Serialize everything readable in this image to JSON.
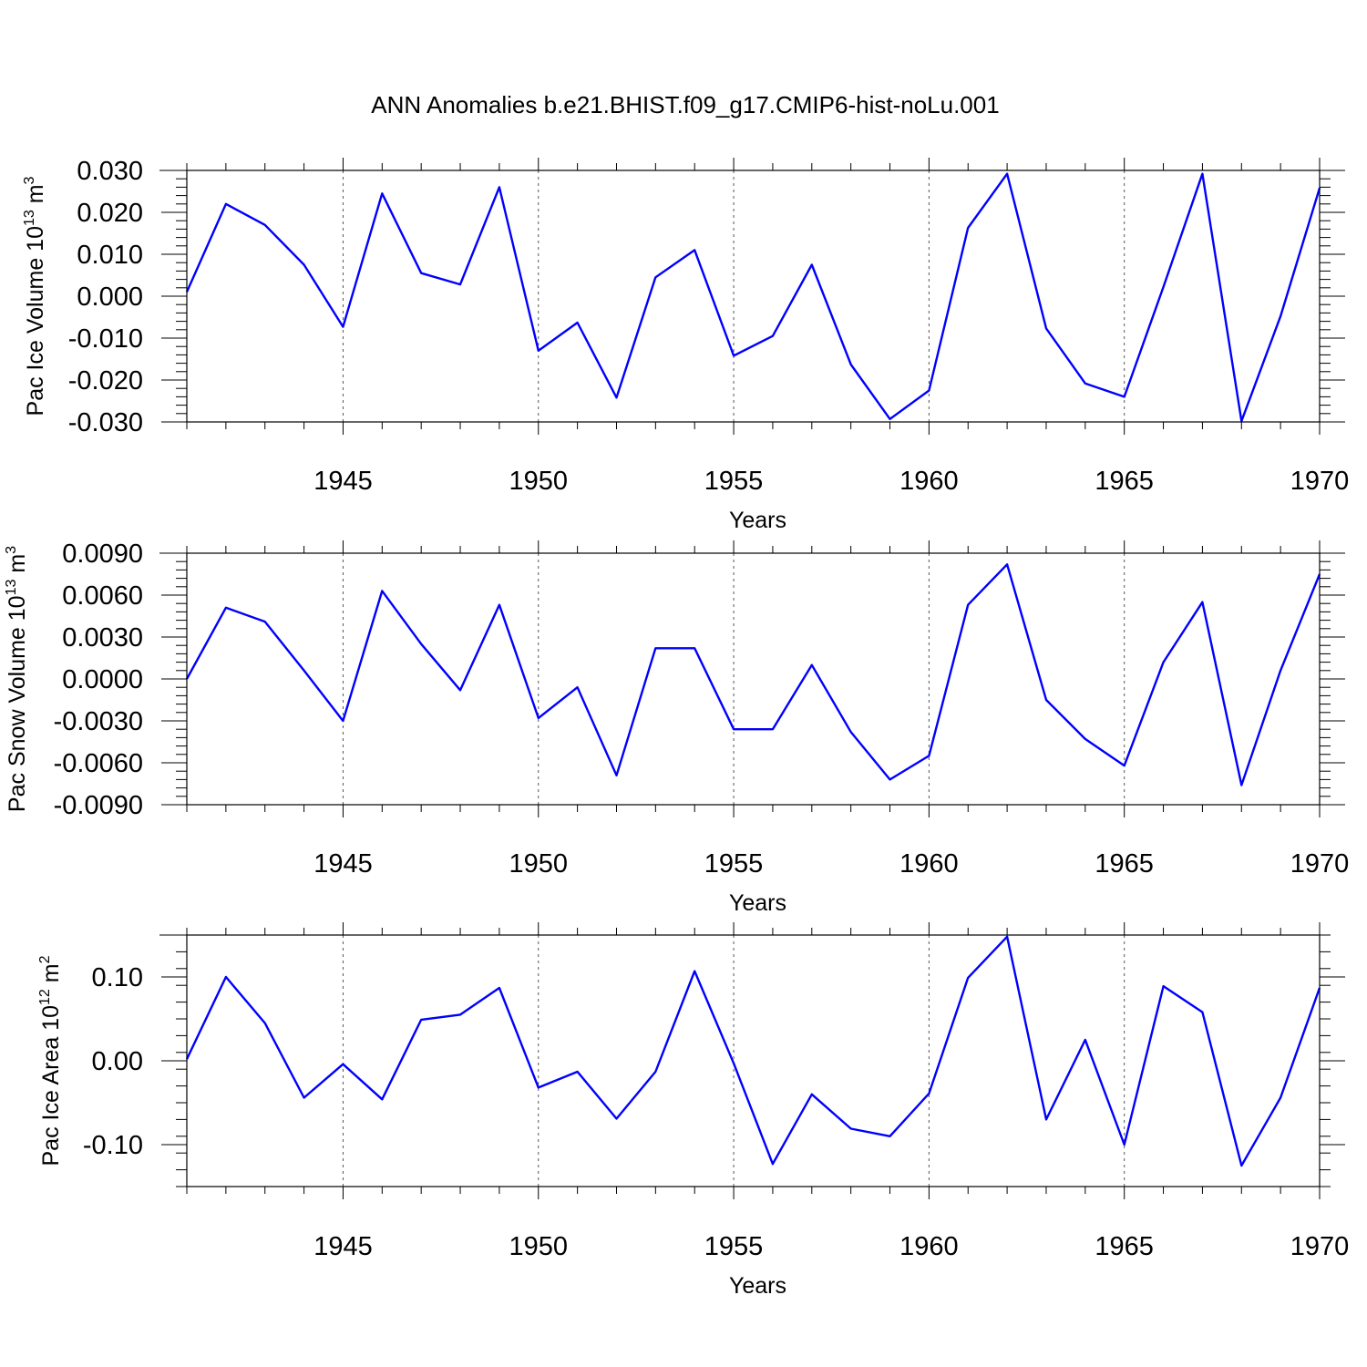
{
  "title": "ANN Anomalies b.e21.BHIST.f09_g17.CMIP6-hist-noLu.001",
  "colors": {
    "series": "#0000ff"
  },
  "chart_data": [
    {
      "type": "line",
      "ylabel_main": "Pac Ice Volume 10",
      "ylabel_exp": "13",
      "ylabel_unit": " m",
      "ylabel_unit_exp": "3",
      "xlabel": "Years",
      "xlim": [
        1941,
        1970
      ],
      "ylim": [
        -0.03,
        0.03
      ],
      "yticks": [
        -0.03,
        -0.02,
        -0.01,
        0.0,
        0.01,
        0.02,
        0.03
      ],
      "ytick_labels": [
        "-0.030",
        "-0.020",
        "-0.010",
        "0.000",
        "0.010",
        "0.020",
        "0.030"
      ],
      "yminor_step": 0.002,
      "xticks": [
        1945,
        1950,
        1955,
        1960,
        1965,
        1970
      ],
      "xtick_labels": [
        "1945",
        "1950",
        "1955",
        "1960",
        "1965",
        "1970"
      ],
      "x": [
        1941,
        1942,
        1943,
        1944,
        1945,
        1946,
        1947,
        1948,
        1949,
        1950,
        1951,
        1952,
        1953,
        1954,
        1955,
        1956,
        1957,
        1958,
        1959,
        1960,
        1961,
        1962,
        1963,
        1964,
        1965,
        1966,
        1967,
        1968,
        1969,
        1970
      ],
      "values": [
        0.001,
        0.022,
        0.017,
        0.0075,
        -0.0073,
        0.0245,
        0.0055,
        0.0028,
        0.026,
        -0.013,
        -0.0063,
        -0.0242,
        0.0045,
        0.011,
        -0.0142,
        -0.0095,
        0.0075,
        -0.0163,
        -0.0293,
        -0.0225,
        0.0163,
        0.0292,
        -0.0077,
        -0.0208,
        -0.024,
        0.0022,
        0.0292,
        -0.0298,
        -0.0048,
        0.0258
      ]
    },
    {
      "type": "line",
      "ylabel_main": "Pac Snow Volume 10",
      "ylabel_exp": "13",
      "ylabel_unit": " m",
      "ylabel_unit_exp": "3",
      "xlabel": "Years",
      "xlim": [
        1941,
        1970
      ],
      "ylim": [
        -0.009,
        0.009
      ],
      "yticks": [
        -0.009,
        -0.006,
        -0.003,
        0.0,
        0.003,
        0.006,
        0.009
      ],
      "ytick_labels": [
        "-0.0090",
        "-0.0060",
        "-0.0030",
        "0.0000",
        "0.0030",
        "0.0060",
        "0.0090"
      ],
      "yminor_step": 0.0006,
      "xticks": [
        1945,
        1950,
        1955,
        1960,
        1965,
        1970
      ],
      "xtick_labels": [
        "1945",
        "1950",
        "1955",
        "1960",
        "1965",
        "1970"
      ],
      "x": [
        1941,
        1942,
        1943,
        1944,
        1945,
        1946,
        1947,
        1948,
        1949,
        1950,
        1951,
        1952,
        1953,
        1954,
        1955,
        1956,
        1957,
        1958,
        1959,
        1960,
        1961,
        1962,
        1963,
        1964,
        1965,
        1966,
        1967,
        1968,
        1969,
        1970
      ],
      "values": [
        0.0,
        0.0051,
        0.0041,
        0.0006,
        -0.003,
        0.0063,
        0.0025,
        -0.0008,
        0.0053,
        -0.0028,
        -0.0006,
        -0.0069,
        0.0022,
        0.0022,
        -0.0036,
        -0.0036,
        0.001,
        -0.0038,
        -0.0072,
        -0.0055,
        0.0053,
        0.0082,
        -0.0015,
        -0.0043,
        -0.0062,
        0.0012,
        0.0055,
        -0.0076,
        0.0006,
        0.0075
      ]
    },
    {
      "type": "line",
      "ylabel_main": "Pac Ice Area 10",
      "ylabel_exp": "12",
      "ylabel_unit": " m",
      "ylabel_unit_exp": "2",
      "xlabel": "Years",
      "xlim": [
        1941,
        1970
      ],
      "ylim": [
        -0.15,
        0.15
      ],
      "yticks": [
        -0.1,
        0.0,
        0.1
      ],
      "ytick_labels": [
        "-0.10",
        "0.00",
        "0.10"
      ],
      "yminor_step": 0.02,
      "xticks": [
        1945,
        1950,
        1955,
        1960,
        1965,
        1970
      ],
      "xtick_labels": [
        "1945",
        "1950",
        "1955",
        "1960",
        "1965",
        "1970"
      ],
      "x": [
        1941,
        1942,
        1943,
        1944,
        1945,
        1946,
        1947,
        1948,
        1949,
        1950,
        1951,
        1952,
        1953,
        1954,
        1955,
        1956,
        1957,
        1958,
        1959,
        1960,
        1961,
        1962,
        1963,
        1964,
        1965,
        1966,
        1967,
        1968,
        1969,
        1970
      ],
      "values": [
        0.002,
        0.1,
        0.045,
        -0.044,
        -0.004,
        -0.046,
        0.049,
        0.055,
        0.087,
        -0.032,
        -0.013,
        -0.069,
        -0.013,
        0.107,
        -0.003,
        -0.123,
        -0.04,
        -0.081,
        -0.09,
        -0.039,
        0.099,
        0.148,
        -0.07,
        0.025,
        -0.1,
        0.089,
        0.058,
        -0.125,
        -0.044,
        0.087
      ]
    }
  ]
}
